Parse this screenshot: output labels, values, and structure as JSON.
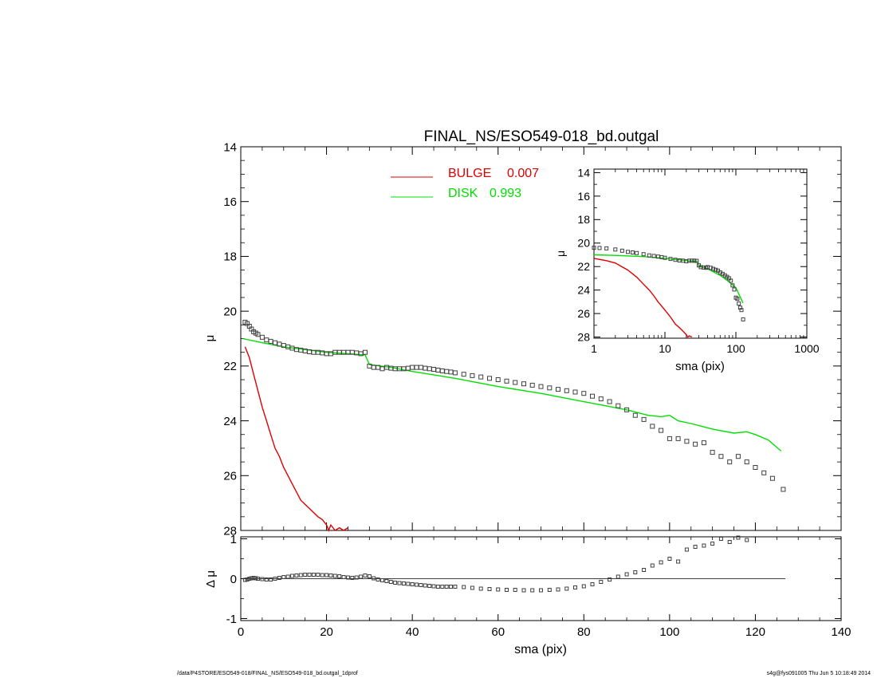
{
  "footer": {
    "left": "/data/P4STORE/ESO549-018/FINAL_NS/ESO549-018_bd.outgal_1dprof",
    "right": "s4g@fys091005  Thu Jun  5 10:18:49 2014"
  },
  "chart_data": [
    {
      "id": "main",
      "type": "line",
      "title": "FINAL_NS/ESO549-018_bd.outgal",
      "xlabel": "",
      "ylabel": "μ",
      "xlim": [
        0,
        140
      ],
      "ylim": [
        28,
        14
      ],
      "yticks": [
        14,
        16,
        18,
        20,
        22,
        24,
        26,
        28
      ],
      "xticks": [
        0,
        20,
        40,
        60,
        80,
        100,
        120,
        140
      ],
      "legend": [
        {
          "name": "BULGE",
          "value": "0.007",
          "color": "#e00000"
        },
        {
          "name": "DISK",
          "value": "0.993",
          "color": "#00e000"
        }
      ],
      "series": [
        {
          "name": "BULGE",
          "color": "#e00000",
          "style": "line",
          "x": [
            1,
            2,
            3,
            4,
            5,
            6,
            7,
            8,
            9,
            10,
            12,
            14,
            16,
            18,
            19,
            20,
            20.5,
            21,
            22,
            23,
            24,
            25
          ],
          "y": [
            21.3,
            21.7,
            22.3,
            22.9,
            23.5,
            24.0,
            24.5,
            25.0,
            25.3,
            25.7,
            26.3,
            26.9,
            27.2,
            27.5,
            27.6,
            27.8,
            28.0,
            27.8,
            28.0,
            27.9,
            28.0,
            27.9
          ]
        },
        {
          "name": "DISK",
          "color": "#00e000",
          "style": "line",
          "x": [
            0.5,
            5,
            10,
            15,
            20,
            25,
            29,
            30,
            35,
            40,
            50,
            60,
            70,
            80,
            90,
            95,
            98,
            100,
            102,
            105,
            110,
            115,
            118,
            120,
            123,
            126
          ],
          "y": [
            21.0,
            21.15,
            21.3,
            21.4,
            21.5,
            21.55,
            21.6,
            21.95,
            22.05,
            22.2,
            22.45,
            22.75,
            23.0,
            23.3,
            23.6,
            23.8,
            23.85,
            23.8,
            24.0,
            24.1,
            24.3,
            24.45,
            24.4,
            24.5,
            24.7,
            25.1
          ]
        },
        {
          "name": "data",
          "color": "#404040",
          "style": "markers",
          "x": [
            1,
            1.5,
            2,
            2.5,
            3,
            3.5,
            4,
            5,
            6,
            7,
            8,
            9,
            10,
            11,
            12,
            13,
            14,
            15,
            16,
            17,
            18,
            19,
            20,
            21,
            22,
            23,
            24,
            25,
            26,
            27,
            28,
            29,
            30,
            31,
            32,
            33,
            34,
            35,
            36,
            37,
            38,
            39,
            40,
            41,
            42,
            43,
            44,
            45,
            46,
            47,
            48,
            49,
            50,
            52,
            54,
            56,
            58,
            60,
            62,
            64,
            66,
            68,
            70,
            72,
            74,
            76,
            78,
            80,
            82,
            84,
            86,
            88,
            90,
            92,
            94,
            96,
            98,
            100,
            102,
            104,
            106,
            108,
            110,
            112,
            114,
            116,
            118,
            120,
            122,
            124,
            126.5
          ],
          "y": [
            20.4,
            20.45,
            20.55,
            20.65,
            20.75,
            20.8,
            20.85,
            20.95,
            21.05,
            21.1,
            21.15,
            21.2,
            21.25,
            21.3,
            21.35,
            21.4,
            21.42,
            21.45,
            21.48,
            21.5,
            21.5,
            21.52,
            21.55,
            21.55,
            21.5,
            21.5,
            21.5,
            21.5,
            21.5,
            21.52,
            21.55,
            21.5,
            22.0,
            22.05,
            22.05,
            22.1,
            22.05,
            22.08,
            22.1,
            22.1,
            22.1,
            22.08,
            22.05,
            22.05,
            22.05,
            22.08,
            22.1,
            22.12,
            22.15,
            22.18,
            22.2,
            22.22,
            22.25,
            22.3,
            22.35,
            22.4,
            22.45,
            22.5,
            22.55,
            22.6,
            22.65,
            22.7,
            22.75,
            22.8,
            22.85,
            22.9,
            22.95,
            23.0,
            23.1,
            23.2,
            23.3,
            23.45,
            23.6,
            23.8,
            23.95,
            24.2,
            24.35,
            24.65,
            24.65,
            24.75,
            24.85,
            24.8,
            25.15,
            25.3,
            25.5,
            25.3,
            25.5,
            25.7,
            25.9,
            26.1,
            26.5
          ]
        }
      ]
    },
    {
      "id": "residual",
      "type": "scatter",
      "xlabel": "sma (pix)",
      "ylabel": "Δ μ",
      "xlim": [
        0,
        140
      ],
      "ylim": [
        -1.05,
        1.05
      ],
      "yticks": [
        -1,
        0,
        1
      ],
      "xticks": [
        0,
        20,
        40,
        60,
        80,
        100,
        120,
        140
      ],
      "zero_line": {
        "x": [
          0,
          127
        ],
        "y": 0
      },
      "series": [
        {
          "name": "residual",
          "color": "#404040",
          "style": "markers",
          "x": [
            1,
            1.5,
            2,
            2.5,
            3,
            3.5,
            4,
            5,
            6,
            7,
            8,
            9,
            10,
            11,
            12,
            13,
            14,
            15,
            16,
            17,
            18,
            19,
            20,
            21,
            22,
            23,
            24,
            25,
            26,
            27,
            28,
            29,
            30,
            31,
            32,
            33,
            34,
            35,
            36,
            37,
            38,
            39,
            40,
            41,
            42,
            43,
            44,
            45,
            46,
            47,
            48,
            49,
            50,
            52,
            54,
            56,
            58,
            60,
            62,
            64,
            66,
            68,
            70,
            72,
            74,
            76,
            78,
            80,
            82,
            84,
            86,
            88,
            90,
            92,
            94,
            96,
            98,
            100,
            102,
            104,
            106,
            108,
            110,
            112,
            114,
            116,
            118
          ],
          "y": [
            -0.03,
            -0.02,
            0.0,
            0.01,
            0.02,
            0.01,
            0.0,
            -0.01,
            -0.02,
            -0.02,
            0.0,
            0.02,
            0.04,
            0.05,
            0.07,
            0.08,
            0.09,
            0.1,
            0.1,
            0.1,
            0.1,
            0.09,
            0.09,
            0.08,
            0.07,
            0.06,
            0.04,
            0.03,
            0.02,
            0.03,
            0.05,
            0.08,
            0.06,
            0.01,
            -0.02,
            -0.04,
            -0.06,
            -0.08,
            -0.1,
            -0.11,
            -0.12,
            -0.13,
            -0.14,
            -0.15,
            -0.16,
            -0.17,
            -0.18,
            -0.19,
            -0.2,
            -0.2,
            -0.2,
            -0.2,
            -0.2,
            -0.21,
            -0.23,
            -0.25,
            -0.26,
            -0.27,
            -0.28,
            -0.28,
            -0.29,
            -0.29,
            -0.29,
            -0.28,
            -0.27,
            -0.25,
            -0.22,
            -0.19,
            -0.14,
            -0.08,
            -0.02,
            0.05,
            0.11,
            0.16,
            0.22,
            0.33,
            0.41,
            0.5,
            0.43,
            0.73,
            0.8,
            0.83,
            0.88,
            1.0,
            0.92,
            1.1,
            0.97
          ]
        }
      ]
    },
    {
      "id": "inset",
      "type": "line",
      "xlabel": "sma (pix)",
      "ylabel": "μ",
      "xscale": "log",
      "xlim": [
        1,
        1000
      ],
      "ylim": [
        28.1,
        13.7
      ],
      "yticks": [
        14,
        16,
        18,
        20,
        22,
        24,
        26,
        28
      ],
      "xticks": [
        1,
        10,
        100,
        1000
      ],
      "xticklabels": [
        "1",
        "10",
        "100",
        "1000"
      ],
      "series": [
        {
          "name": "BULGE",
          "color": "#e00000",
          "style": "line",
          "x": [
            1,
            1.5,
            2,
            3,
            4,
            5,
            6,
            7,
            8,
            10,
            12,
            14,
            16,
            18,
            20,
            21,
            22,
            24
          ],
          "y": [
            21.3,
            21.5,
            21.7,
            22.3,
            22.9,
            23.5,
            24.0,
            24.5,
            25.0,
            25.7,
            26.3,
            26.9,
            27.2,
            27.5,
            27.8,
            28.0,
            27.9,
            28.0
          ]
        },
        {
          "name": "DISK",
          "color": "#00e000",
          "style": "line",
          "x": [
            1,
            2,
            5,
            10,
            15,
            20,
            25,
            29,
            30,
            40,
            60,
            80,
            100,
            126
          ],
          "y": [
            21.0,
            21.05,
            21.15,
            21.3,
            21.4,
            21.5,
            21.55,
            21.6,
            21.95,
            22.2,
            22.75,
            23.3,
            23.8,
            25.1
          ]
        },
        {
          "name": "data",
          "color": "#404040",
          "style": "markers",
          "x": [
            1,
            1.2,
            1.5,
            2,
            2.5,
            3,
            3.5,
            4,
            5,
            6,
            7,
            8,
            9,
            10,
            12,
            14,
            16,
            18,
            20,
            22,
            24,
            26,
            28,
            30,
            32,
            35,
            38,
            40,
            44,
            48,
            52,
            56,
            60,
            65,
            70,
            75,
            80,
            85,
            90,
            95,
            100,
            105,
            110,
            115,
            120,
            126.5
          ],
          "y": [
            20.4,
            20.42,
            20.45,
            20.55,
            20.65,
            20.75,
            20.8,
            20.85,
            20.95,
            21.05,
            21.1,
            21.15,
            21.2,
            21.25,
            21.35,
            21.42,
            21.48,
            21.5,
            21.55,
            21.5,
            21.5,
            21.5,
            21.52,
            21.9,
            22.05,
            22.08,
            22.1,
            22.05,
            22.1,
            22.2,
            22.27,
            22.35,
            22.5,
            22.62,
            22.75,
            22.88,
            23.0,
            23.2,
            23.6,
            23.95,
            24.65,
            24.75,
            25.15,
            25.5,
            25.7,
            26.5
          ]
        }
      ]
    }
  ]
}
